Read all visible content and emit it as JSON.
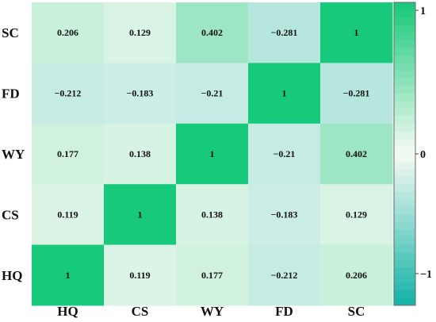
{
  "chart_data": {
    "type": "heatmap",
    "title": "",
    "x_categories": [
      "HQ",
      "CS",
      "WY",
      "FD",
      "SC"
    ],
    "y_categories": [
      "SC",
      "FD",
      "WY",
      "CS",
      "HQ"
    ],
    "values": [
      [
        0.206,
        0.129,
        0.402,
        -0.281,
        1
      ],
      [
        -0.212,
        -0.183,
        -0.21,
        1,
        -0.281
      ],
      [
        0.177,
        0.138,
        1,
        -0.21,
        0.402
      ],
      [
        0.119,
        1,
        0.138,
        -0.183,
        0.129
      ],
      [
        1,
        0.119,
        0.177,
        -0.212,
        0.206
      ]
    ],
    "value_labels": [
      [
        "0.206",
        "0.129",
        "0.402",
        "−0.281",
        "1"
      ],
      [
        "−0.212",
        "−0.183",
        "−0.21",
        "1",
        "−0.281"
      ],
      [
        "0.177",
        "0.138",
        "1",
        "−0.21",
        "0.402"
      ],
      [
        "0.119",
        "1",
        "0.138",
        "−0.183",
        "0.129"
      ],
      [
        "1",
        "0.119",
        "0.177",
        "−0.212",
        "0.206"
      ]
    ],
    "colorbar": {
      "range": [
        -1,
        1
      ],
      "ticks": [
        {
          "value": 1,
          "label": "1"
        },
        {
          "value": 0,
          "label": "0"
        },
        {
          "value": -1,
          "label": "−1"
        }
      ],
      "colors": {
        "low": "#12b2a6",
        "mid": "#f6faf4",
        "high": "#17c97a"
      }
    },
    "legend_position": "right"
  }
}
